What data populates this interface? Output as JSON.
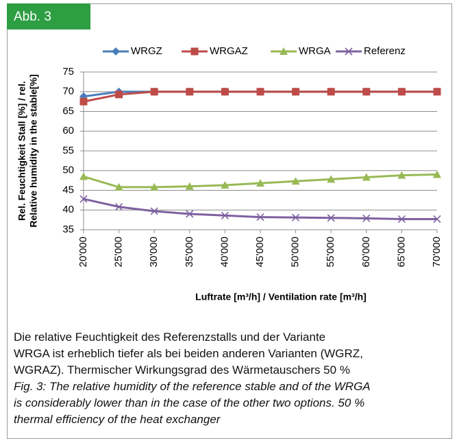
{
  "figure_label": "Abb. 3",
  "chart_data": {
    "type": "line",
    "ylabel": [
      "Rel. Feuchtigkeit Stall [%] / rel.",
      "Relative humidity in the stable[%]"
    ],
    "xlabel": "Luftrate [m³/h] / Ventilation rate [m³/h]",
    "categories": [
      "20'000",
      "25'000",
      "30'000",
      "35'000",
      "40'000",
      "45'000",
      "50'000",
      "55'000",
      "60'000",
      "65'000",
      "70'000"
    ],
    "series": [
      {
        "name": "WRGZ",
        "color": "#4a7ebb",
        "marker": "diamond",
        "values": [
          68.8,
          70,
          70,
          70,
          70,
          70,
          70,
          70,
          70,
          70,
          70
        ]
      },
      {
        "name": "WRGAZ",
        "color": "#be4b48",
        "marker": "square",
        "values": [
          67.5,
          69.3,
          70,
          70,
          70,
          70,
          70,
          70,
          70,
          70,
          70
        ]
      },
      {
        "name": "WRGA",
        "color": "#98b954",
        "marker": "triangle",
        "values": [
          48.5,
          45.8,
          45.8,
          46,
          46.3,
          46.8,
          47.3,
          47.8,
          48.3,
          48.8,
          49
        ]
      },
      {
        "name": "Referenz",
        "color": "#7d60a0",
        "marker": "x",
        "values": [
          42.8,
          40.8,
          39.7,
          39,
          38.6,
          38.2,
          38.1,
          38,
          37.9,
          37.7,
          37.7
        ]
      }
    ],
    "ylim": [
      35,
      75
    ],
    "yticks": [
      35,
      40,
      45,
      50,
      55,
      60,
      65,
      70,
      75
    ],
    "grid": true,
    "legend": "top"
  },
  "caption": {
    "de": [
      "Die relative Feuchtigkeit des Referenzstalls und der Variante",
      "WRGA ist erheblich tiefer als bei beiden anderen Varianten (WGRZ,",
      "WGRAZ). Thermischer Wirkungsgrad des Wärmetauschers 50 %"
    ],
    "en": [
      "Fig. 3: The relative humidity of the reference stable and of the WRGA",
      "is considerably lower than in the case of the other two options. 50 %",
      "thermal efficiency of the heat exchanger"
    ]
  }
}
